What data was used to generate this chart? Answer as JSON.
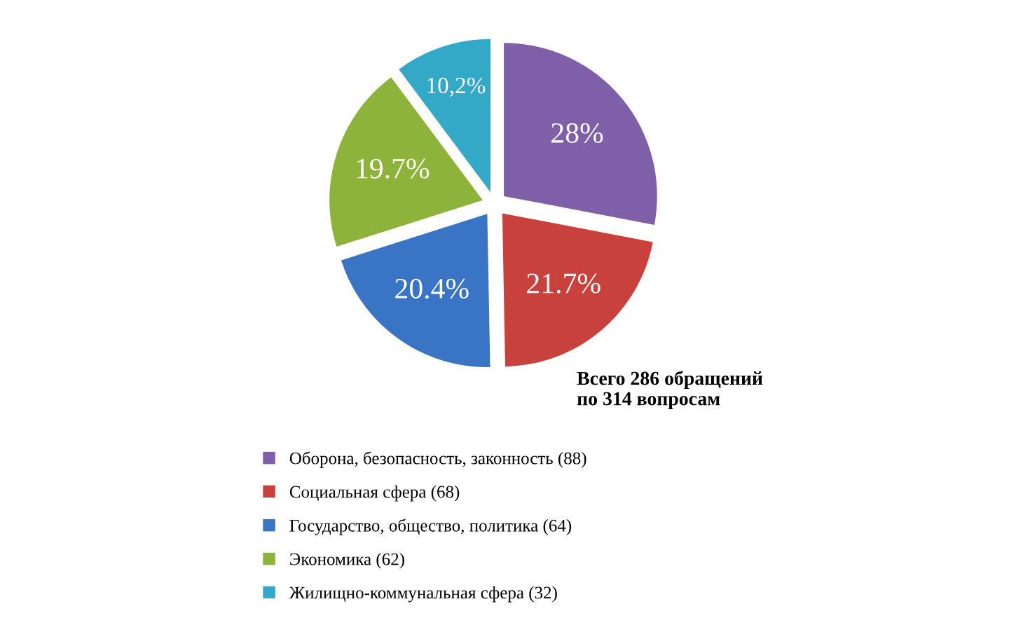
{
  "chart_data": {
    "type": "pie",
    "categories": [
      "Оборона, безопасность, законность (88)",
      "Социальная сфера (68)",
      "Государство, общество, политика (64)",
      "Экономика (62)",
      "Жилищно-коммунальная сфера (32)"
    ],
    "values": [
      28,
      21.7,
      20.4,
      19.7,
      10.2
    ],
    "value_labels": [
      "28%",
      "21.7%",
      "20.4%",
      "19.7%",
      "10,2%"
    ],
    "colors": [
      "#7f5fa8",
      "#c9413d",
      "#3a74c4",
      "#8db33a",
      "#33a8c7"
    ],
    "annotations": [
      "Всего 286 обращений\nпо 314 вопросам"
    ],
    "legend": "bottom left"
  }
}
